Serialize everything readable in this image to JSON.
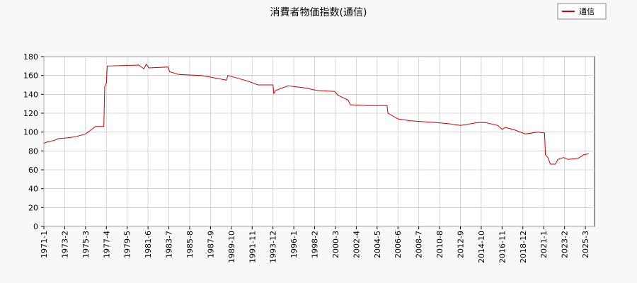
{
  "chart_data": {
    "type": "line",
    "title": "消費者物価指数(通信)",
    "x": [
      "1971-1",
      "1971-6",
      "1972-1",
      "1972-6",
      "1973-6",
      "1974-3",
      "1975-3",
      "1976-3",
      "1977-1",
      "1977-2",
      "1977-4",
      "1977-5",
      "1980-7",
      "1981-1",
      "1981-4",
      "1981-7",
      "1983-6",
      "1983-8",
      "1984-7",
      "1986-10",
      "1988-5",
      "1989-4",
      "1989-6",
      "1990-6",
      "1991-6",
      "1992-6",
      "1993-12",
      "1994-1",
      "1994-3",
      "1995-6",
      "1997-1",
      "1998-6",
      "2000-2",
      "2000-6",
      "2001-6",
      "2001-9",
      "2003-6",
      "2005-5",
      "2005-6",
      "2006-6",
      "2007-9",
      "2010-4",
      "2011-6",
      "2012-9",
      "2014-6",
      "2015-3",
      "2016-6",
      "2016-11",
      "2017-3",
      "2018-3",
      "2019-3",
      "2020-6",
      "2021-2",
      "2021-3",
      "2021-6",
      "2021-9",
      "2022-3",
      "2022-6",
      "2023-1",
      "2023-6",
      "2024-6",
      "2025-1",
      "2025-7"
    ],
    "series": [
      {
        "name": "通信",
        "color": "#cc0000",
        "values": [
          88,
          90,
          91,
          93,
          94,
          95,
          98,
          106,
          106,
          148,
          152,
          170,
          171,
          167,
          172,
          168,
          169,
          164,
          161,
          160,
          157,
          155,
          160,
          157,
          154,
          150,
          150,
          141,
          144,
          149,
          147,
          144,
          143,
          139,
          134,
          129,
          128,
          128,
          120,
          114,
          112,
          110,
          109,
          107,
          110,
          110,
          107,
          103,
          105,
          102,
          98,
          100,
          99,
          76,
          73,
          66,
          66,
          71,
          73,
          71,
          72,
          76,
          77
        ]
      }
    ],
    "xlim": [
      "1971-1",
      "2026-2"
    ],
    "xticks": [
      "1971-1",
      "1973-2",
      "1975-3",
      "1977-4",
      "1979-5",
      "1981-6",
      "1983-7",
      "1985-8",
      "1987-9",
      "1989-10",
      "1991-11",
      "1993-12",
      "1996-1",
      "1998-2",
      "2000-3",
      "2002-4",
      "2004-5",
      "2006-6",
      "2008-7",
      "2010-8",
      "2012-9",
      "2014-10",
      "2016-11",
      "2018-12",
      "2021-1",
      "2023-2",
      "2025-3"
    ],
    "ylim": [
      0,
      180
    ],
    "yticks": [
      0,
      20,
      40,
      60,
      80,
      100,
      120,
      140,
      160,
      180
    ],
    "grid": true,
    "legend": "top-right"
  }
}
